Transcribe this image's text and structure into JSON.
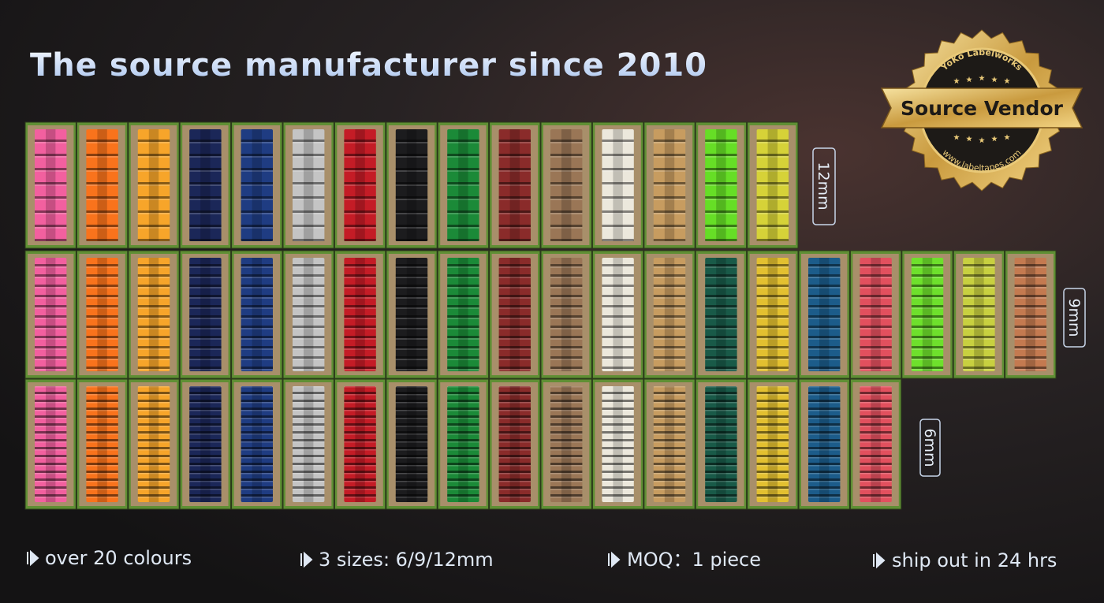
{
  "title": "The source manufacturer since 2010",
  "badge": {
    "brand": "YoKo Labelworks",
    "title": "Source Vendor",
    "url": "www.labeltapes.com"
  },
  "size_labels": [
    "12mm",
    "9mm",
    "6mm"
  ],
  "features": [
    "over 20 colours",
    "3 sizes: 6/9/12mm",
    "MOQ：1 piece",
    "ship out in 24 hrs"
  ]
}
